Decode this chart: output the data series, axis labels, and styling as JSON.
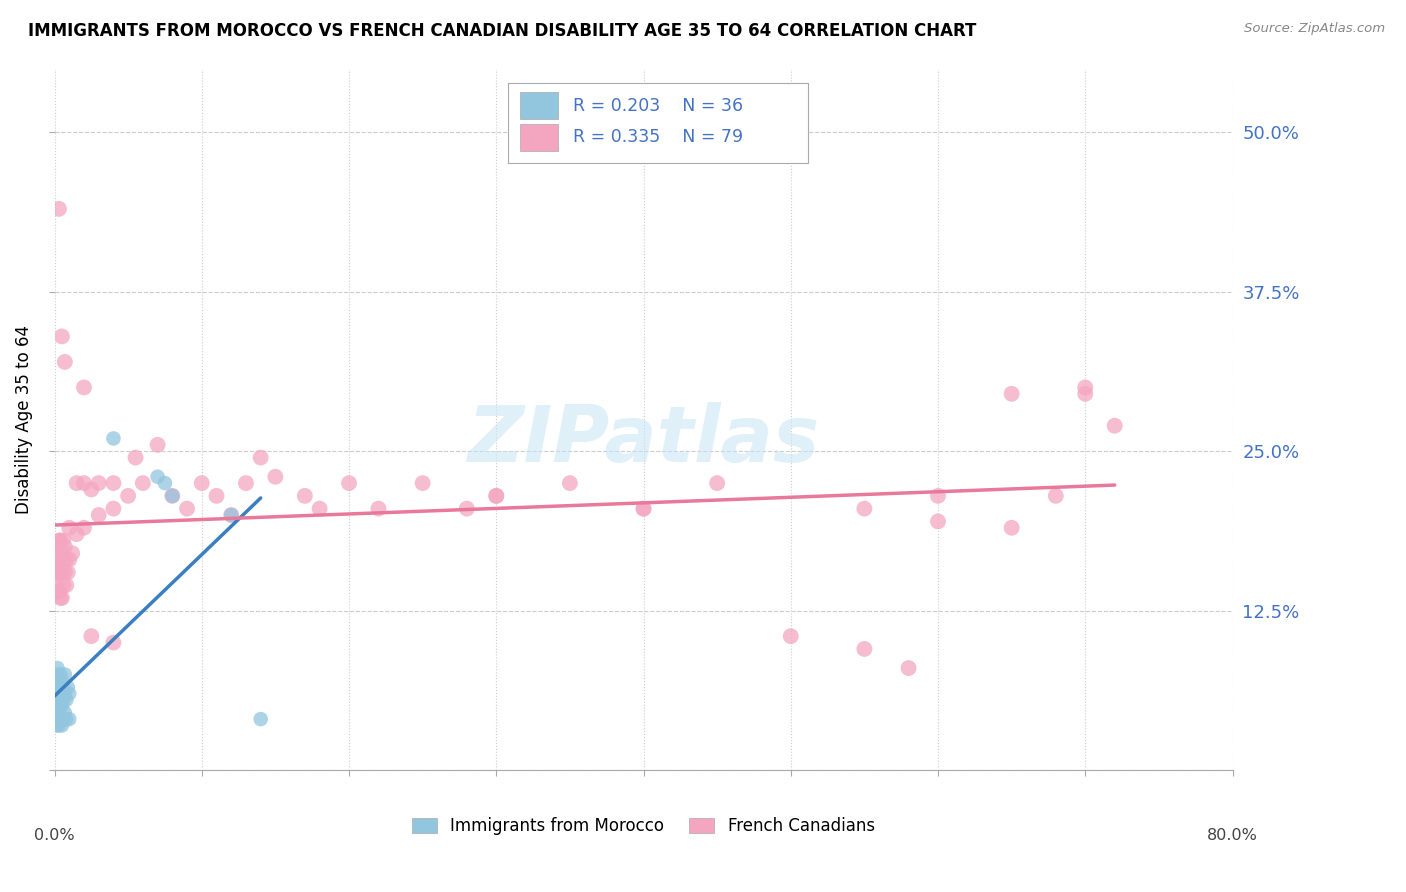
{
  "title": "IMMIGRANTS FROM MOROCCO VS FRENCH CANADIAN DISABILITY AGE 35 TO 64 CORRELATION CHART",
  "source": "Source: ZipAtlas.com",
  "ylabel": "Disability Age 35 to 64",
  "xlim": [
    0.0,
    0.8
  ],
  "ylim": [
    0.0,
    0.55
  ],
  "ytick_positions": [
    0.0,
    0.125,
    0.25,
    0.375,
    0.5
  ],
  "ytick_labels": [
    "",
    "12.5%",
    "25.0%",
    "37.5%",
    "50.0%"
  ],
  "xtick_positions": [
    0.0,
    0.1,
    0.2,
    0.3,
    0.4,
    0.5,
    0.6,
    0.7,
    0.8
  ],
  "morocco_R": 0.203,
  "morocco_N": 36,
  "french_R": 0.335,
  "french_N": 79,
  "morocco_scatter_color": "#92c5de",
  "french_scatter_color": "#f4a6c0",
  "morocco_line_color": "#3a7fc1",
  "french_line_color": "#e8799a",
  "watermark": "ZIPatlas",
  "legend_label_morocco": "Immigrants from Morocco",
  "legend_label_french": "French Canadians",
  "tick_label_color": "#4472c4",
  "axis_label_color": "#555555",
  "grid_color": "#cccccc",
  "morocco_x": [
    0.001,
    0.001,
    0.001,
    0.001,
    0.002,
    0.002,
    0.002,
    0.002,
    0.003,
    0.003,
    0.003,
    0.004,
    0.004,
    0.004,
    0.004,
    0.005,
    0.005,
    0.005,
    0.005,
    0.006,
    0.006,
    0.006,
    0.007,
    0.007,
    0.007,
    0.008,
    0.008,
    0.009,
    0.01,
    0.01,
    0.04,
    0.07,
    0.075,
    0.08,
    0.12,
    0.14
  ],
  "morocco_y": [
    0.035,
    0.05,
    0.06,
    0.075,
    0.04,
    0.055,
    0.065,
    0.08,
    0.035,
    0.05,
    0.065,
    0.04,
    0.055,
    0.065,
    0.075,
    0.035,
    0.05,
    0.06,
    0.07,
    0.04,
    0.055,
    0.065,
    0.045,
    0.06,
    0.075,
    0.04,
    0.055,
    0.065,
    0.04,
    0.06,
    0.26,
    0.23,
    0.225,
    0.215,
    0.2,
    0.04
  ],
  "french_x": [
    0.001,
    0.001,
    0.001,
    0.002,
    0.002,
    0.002,
    0.003,
    0.003,
    0.003,
    0.004,
    0.004,
    0.004,
    0.004,
    0.005,
    0.005,
    0.005,
    0.006,
    0.006,
    0.006,
    0.007,
    0.007,
    0.008,
    0.008,
    0.009,
    0.01,
    0.01,
    0.012,
    0.015,
    0.015,
    0.02,
    0.02,
    0.025,
    0.03,
    0.03,
    0.04,
    0.04,
    0.05,
    0.055,
    0.06,
    0.07,
    0.08,
    0.09,
    0.1,
    0.11,
    0.12,
    0.13,
    0.14,
    0.15,
    0.17,
    0.18,
    0.2,
    0.22,
    0.25,
    0.28,
    0.3,
    0.35,
    0.4,
    0.45,
    0.5,
    0.55,
    0.58,
    0.6,
    0.65,
    0.68,
    0.7,
    0.72,
    0.002,
    0.003,
    0.005,
    0.007,
    0.02,
    0.025,
    0.04,
    0.3,
    0.4,
    0.55,
    0.6,
    0.65,
    0.7
  ],
  "french_y": [
    0.145,
    0.16,
    0.175,
    0.14,
    0.155,
    0.175,
    0.14,
    0.16,
    0.18,
    0.135,
    0.155,
    0.165,
    0.18,
    0.135,
    0.155,
    0.17,
    0.145,
    0.165,
    0.18,
    0.155,
    0.175,
    0.145,
    0.165,
    0.155,
    0.165,
    0.19,
    0.17,
    0.185,
    0.225,
    0.19,
    0.225,
    0.22,
    0.2,
    0.225,
    0.205,
    0.225,
    0.215,
    0.245,
    0.225,
    0.255,
    0.215,
    0.205,
    0.225,
    0.215,
    0.2,
    0.225,
    0.245,
    0.23,
    0.215,
    0.205,
    0.225,
    0.205,
    0.225,
    0.205,
    0.215,
    0.225,
    0.205,
    0.225,
    0.105,
    0.095,
    0.08,
    0.195,
    0.19,
    0.215,
    0.3,
    0.27,
    0.155,
    0.44,
    0.34,
    0.32,
    0.3,
    0.105,
    0.1,
    0.215,
    0.205,
    0.205,
    0.215,
    0.295,
    0.295
  ]
}
